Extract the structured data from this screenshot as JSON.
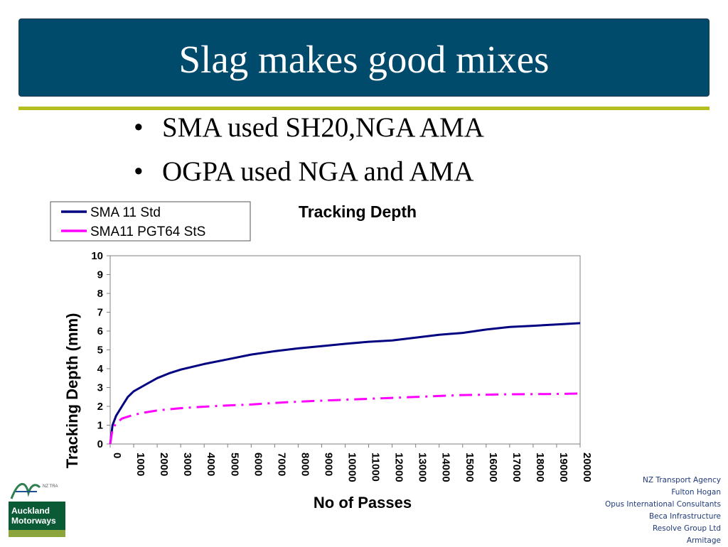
{
  "slide": {
    "title": "Slag makes good mixes",
    "bullets": [
      "SMA used SH20,NGA AMA",
      "OGPA used NGA and AMA"
    ]
  },
  "chart_data": {
    "type": "line",
    "title": "Tracking Depth",
    "xlabel": "No of Passes",
    "ylabel": "Tracking Depth (mm)",
    "xlim": [
      0,
      20000
    ],
    "ylim": [
      0,
      10
    ],
    "xticks": [
      "0",
      "1000",
      "2000",
      "3000",
      "4000",
      "5000",
      "6000",
      "7000",
      "8000",
      "9000",
      "10000",
      "11000",
      "12000",
      "13000",
      "14000",
      "15000",
      "16000",
      "17000",
      "18000",
      "19000",
      "20000"
    ],
    "yticks": [
      "0",
      "1",
      "2",
      "3",
      "4",
      "5",
      "6",
      "7",
      "8",
      "9",
      "10"
    ],
    "legend_position": "top-left",
    "grid": false,
    "series": [
      {
        "name": "SMA 11 Std",
        "color": "#000080",
        "style": "solid",
        "x": [
          0,
          100,
          250,
          500,
          750,
          1000,
          1500,
          2000,
          2500,
          3000,
          4000,
          5000,
          6000,
          7000,
          8000,
          9000,
          10000,
          11000,
          12000,
          13000,
          14000,
          15000,
          16000,
          17000,
          18000,
          19000,
          20000
        ],
        "y": [
          0,
          1.0,
          1.5,
          2.0,
          2.5,
          2.8,
          3.15,
          3.5,
          3.75,
          3.95,
          4.25,
          4.5,
          4.75,
          4.93,
          5.08,
          5.2,
          5.32,
          5.43,
          5.5,
          5.65,
          5.8,
          5.9,
          6.08,
          6.22,
          6.28,
          6.35,
          6.42
        ]
      },
      {
        "name": "SMA11 PGT64 StS",
        "color": "#ff00ff",
        "style": "dashdot",
        "x": [
          0,
          100,
          250,
          500,
          1000,
          1500,
          2000,
          3000,
          4000,
          5000,
          6000,
          7000,
          8000,
          9000,
          10000,
          11000,
          12000,
          13000,
          14000,
          15000,
          16000,
          17000,
          18000,
          19000,
          20000
        ],
        "y": [
          0,
          0.8,
          1.1,
          1.35,
          1.55,
          1.68,
          1.78,
          1.9,
          1.98,
          2.05,
          2.1,
          2.18,
          2.25,
          2.3,
          2.35,
          2.4,
          2.45,
          2.5,
          2.55,
          2.6,
          2.62,
          2.64,
          2.65,
          2.66,
          2.68
        ]
      }
    ]
  },
  "sponsors": [
    "NZ Transport Agency",
    "Fulton Hogan",
    "Opus International Consultants",
    "Beca Infrastructure",
    "Resolve Group Ltd",
    "Armitage"
  ],
  "logo": {
    "line1": "Auckland",
    "line2": "Motorways",
    "mark_text": "NZ TRA"
  }
}
